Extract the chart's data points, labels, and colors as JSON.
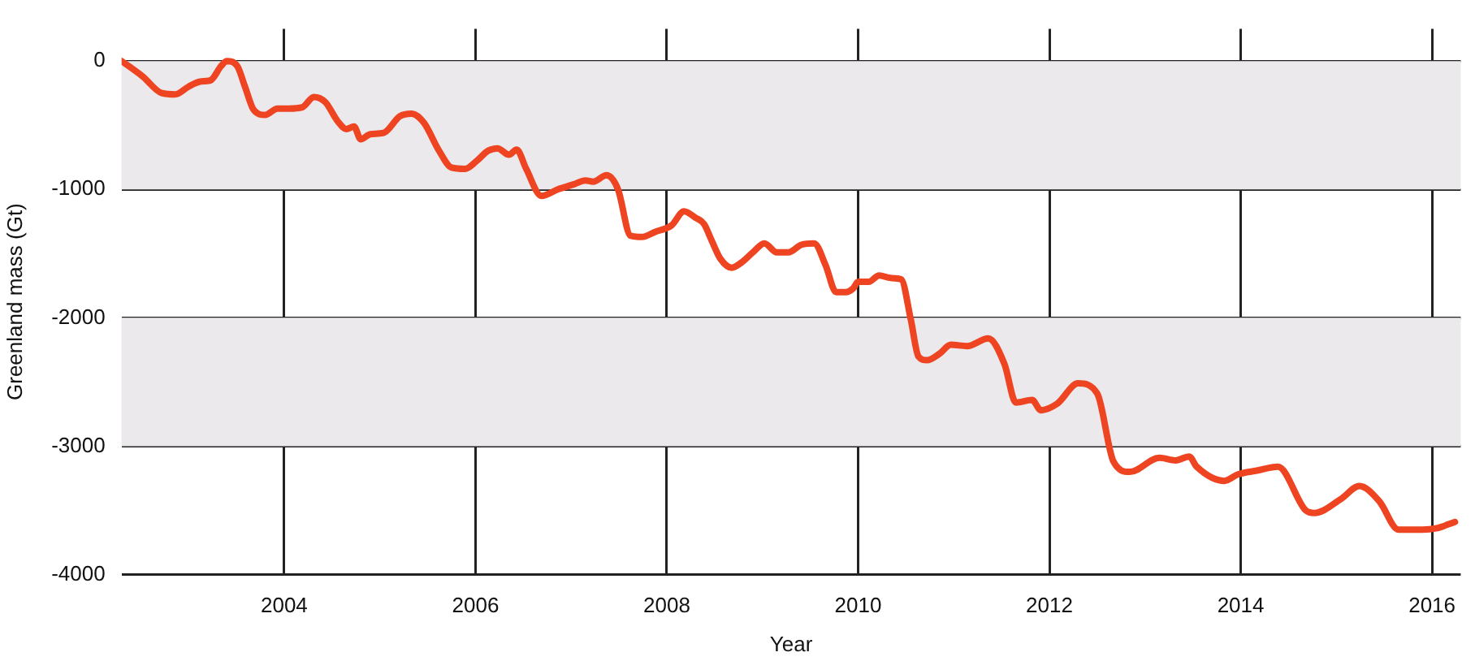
{
  "chart_data": {
    "type": "line",
    "xlabel": "Year",
    "ylabel": "Greenland mass (Gt)",
    "x": [
      2002.3,
      2002.52,
      2002.72,
      2002.86,
      2003.0,
      2003.12,
      2003.23,
      2003.34,
      2003.4,
      2003.51,
      2003.59,
      2003.68,
      2003.8,
      2003.93,
      2004.05,
      2004.19,
      2004.31,
      2004.43,
      2004.56,
      2004.65,
      2004.73,
      2004.8,
      2004.9,
      2005.04,
      2005.21,
      2005.33,
      2005.46,
      2005.62,
      2005.75,
      2005.89,
      2006.01,
      2006.13,
      2006.23,
      2006.35,
      2006.43,
      2006.53,
      2006.69,
      2006.86,
      2007.03,
      2007.15,
      2007.23,
      2007.37,
      2007.49,
      2007.62,
      2007.74,
      2007.88,
      2008.05,
      2008.18,
      2008.3,
      2008.39,
      2008.47,
      2008.56,
      2008.68,
      2008.78,
      2008.9,
      2009.02,
      2009.15,
      2009.27,
      2009.41,
      2009.54,
      2009.66,
      2009.77,
      2009.87,
      2009.95,
      2010.0,
      2010.11,
      2010.22,
      2010.34,
      2010.45,
      2010.55,
      2010.63,
      2010.72,
      2010.85,
      2010.97,
      2011.14,
      2011.36,
      2011.53,
      2011.65,
      2011.82,
      2011.91,
      2012.08,
      2012.3,
      2012.5,
      2012.67,
      2012.84,
      2013.15,
      2013.32,
      2013.46,
      2013.54,
      2013.83,
      2013.97,
      2014.17,
      2014.39,
      2014.68,
      2014.77,
      2015.05,
      2015.24,
      2015.45,
      2015.65,
      2015.9,
      2016.04,
      2016.24
    ],
    "series": [
      {
        "color": "#ee4422",
        "values": [
          0,
          -120,
          -250,
          -260,
          -200,
          -160,
          -150,
          -40,
          0,
          -40,
          -200,
          -380,
          -420,
          -370,
          -370,
          -360,
          -280,
          -320,
          -470,
          -530,
          -510,
          -610,
          -570,
          -560,
          -430,
          -410,
          -480,
          -700,
          -830,
          -840,
          -780,
          -700,
          -680,
          -730,
          -690,
          -840,
          -1050,
          -1000,
          -960,
          -930,
          -940,
          -890,
          -1000,
          -1360,
          -1370,
          -1330,
          -1280,
          -1170,
          -1220,
          -1270,
          -1400,
          -1540,
          -1610,
          -1570,
          -1490,
          -1420,
          -1490,
          -1490,
          -1430,
          -1420,
          -1590,
          -1800,
          -1800,
          -1770,
          -1720,
          -1720,
          -1670,
          -1690,
          -1700,
          -2010,
          -2300,
          -2330,
          -2280,
          -2210,
          -2220,
          -2160,
          -2360,
          -2660,
          -2640,
          -2720,
          -2670,
          -2510,
          -2590,
          -3120,
          -3200,
          -3090,
          -3110,
          -3080,
          -3160,
          -3270,
          -3220,
          -3190,
          -3160,
          -3500,
          -3520,
          -3410,
          -3310,
          -3430,
          -3650,
          -3650,
          -3640,
          -3590
        ]
      }
    ],
    "xlim": [
      2002.3,
      2016.3
    ],
    "xticks": [
      2004,
      2006,
      2008,
      2010,
      2012,
      2014,
      2016
    ],
    "ylim": [
      -4000,
      250
    ],
    "yticks": [
      -4000,
      -3000,
      -2000,
      -1000,
      0
    ],
    "bands": [
      {
        "axis": "y",
        "from": -1000,
        "to": 0,
        "color": "#ebe9ec"
      },
      {
        "axis": "y",
        "from": -3000,
        "to": -2000,
        "color": "#ebe9ec"
      }
    ],
    "grid": true,
    "marker": "none",
    "line_style": "solid"
  }
}
